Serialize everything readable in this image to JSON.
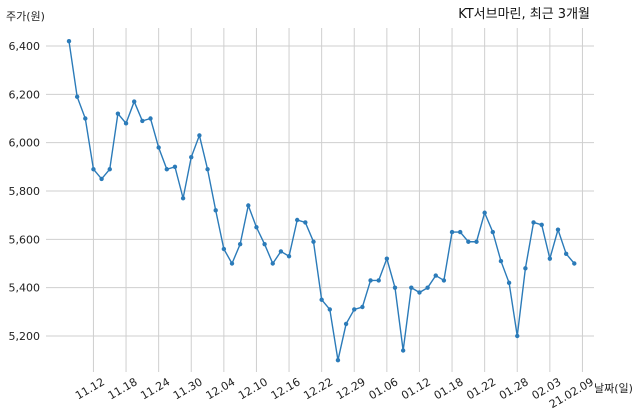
{
  "chart_data": {
    "type": "line",
    "title": "KT서브마린, 최근 3개월",
    "ylabel": "주가(원)",
    "xlabel": "날짜(일)",
    "ylim": [
      5000,
      6500
    ],
    "yticks": [
      5200,
      5400,
      5600,
      5800,
      6000,
      6200,
      6400
    ],
    "ytick_labels": [
      "5,200",
      "5,400",
      "5,600",
      "5,800",
      "6,000",
      "6,200",
      "6,400"
    ],
    "grid": true,
    "xtick_labels": [
      "11.12",
      "11.18",
      "11.24",
      "11.30",
      "12.04",
      "12.10",
      "12.16",
      "12.22",
      "12.29",
      "01.06",
      "01.12",
      "01.18",
      "01.22",
      "01.28",
      "02.03",
      "21.02.09"
    ],
    "xtick_index": [
      3,
      7,
      11,
      15,
      19,
      23,
      27,
      31,
      35,
      39,
      43,
      47,
      51,
      55,
      59,
      63
    ],
    "series": [
      {
        "values": [
          6420,
          6190,
          6100,
          5890,
          5850,
          5890,
          6120,
          6080,
          6170,
          6090,
          6100,
          5980,
          5890,
          5900,
          5770,
          5940,
          6030,
          5890,
          5720,
          5560,
          5500,
          5580,
          5740,
          5650,
          5580,
          5500,
          5550,
          5530,
          5680,
          5670,
          5590,
          5350,
          5310,
          5100,
          5250,
          5310,
          5320,
          5430,
          5430,
          5520,
          5400,
          5140,
          5400,
          5380,
          5400,
          5450,
          5430,
          5630,
          5630,
          5590,
          5590,
          5710,
          5630,
          5510,
          5420,
          5200,
          5480,
          5670,
          5660,
          5520,
          5640,
          5540,
          5500
        ]
      }
    ]
  }
}
